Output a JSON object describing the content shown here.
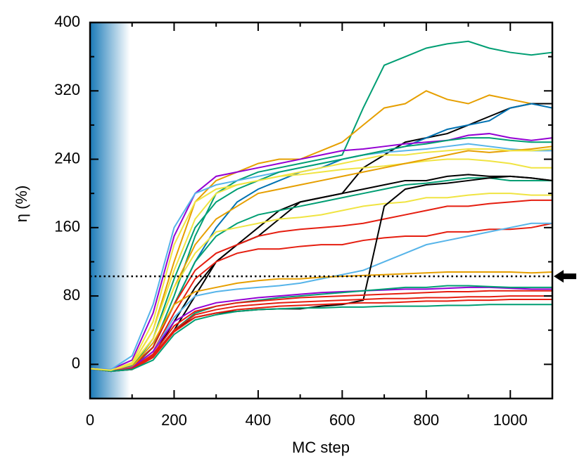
{
  "chart_data": {
    "type": "line",
    "xlabel": "MC step",
    "ylabel": "η  (%)",
    "xlim": [
      0,
      1100
    ],
    "ylim": [
      -40,
      400
    ],
    "xticks": [
      0,
      200,
      400,
      600,
      800,
      1000
    ],
    "xticks_minor": [
      100,
      300,
      500,
      700,
      900
    ],
    "yticks": [
      0,
      80,
      160,
      240,
      320,
      400
    ],
    "yticks_minor": [
      -40,
      40,
      120,
      200,
      280,
      360
    ],
    "reference_line": 103,
    "shaded_region": [
      0,
      95
    ],
    "shade_color": "#1a7ab8",
    "x": [
      0,
      50,
      100,
      150,
      200,
      250,
      300,
      350,
      400,
      450,
      500,
      550,
      600,
      650,
      700,
      750,
      800,
      850,
      900,
      950,
      1000,
      1050,
      1100
    ],
    "series": [
      {
        "color": "#009e73",
        "values": [
          -5,
          -8,
          -5,
          20,
          80,
          150,
          200,
          215,
          225,
          230,
          235,
          240,
          245,
          300,
          350,
          360,
          370,
          375,
          378,
          370,
          365,
          362,
          365
        ]
      },
      {
        "color": "#e69f00",
        "values": [
          -5,
          -7,
          0,
          40,
          120,
          190,
          215,
          225,
          235,
          240,
          240,
          250,
          260,
          280,
          300,
          305,
          320,
          310,
          305,
          315,
          310,
          305,
          305
        ]
      },
      {
        "color": "#000000",
        "values": [
          -5,
          -8,
          -3,
          10,
          40,
          80,
          120,
          140,
          150,
          170,
          190,
          195,
          200,
          230,
          245,
          260,
          265,
          270,
          280,
          290,
          300,
          305,
          305
        ]
      },
      {
        "color": "#0072b2",
        "values": [
          -5,
          -8,
          -2,
          20,
          70,
          120,
          160,
          190,
          205,
          215,
          225,
          230,
          240,
          245,
          250,
          255,
          265,
          275,
          280,
          285,
          300,
          305,
          300
        ]
      },
      {
        "color": "#9400d3",
        "values": [
          -5,
          -6,
          5,
          60,
          150,
          200,
          220,
          225,
          230,
          235,
          240,
          245,
          250,
          252,
          255,
          258,
          260,
          262,
          268,
          270,
          265,
          262,
          265
        ]
      },
      {
        "color": "#56b4e9",
        "values": [
          -5,
          -6,
          10,
          70,
          160,
          200,
          210,
          215,
          220,
          225,
          230,
          235,
          240,
          245,
          248,
          250,
          252,
          255,
          258,
          255,
          252,
          250,
          250
        ]
      },
      {
        "color": "#f0e442",
        "values": [
          -5,
          -7,
          0,
          40,
          110,
          170,
          200,
          210,
          215,
          220,
          222,
          225,
          228,
          230,
          232,
          235,
          238,
          240,
          240,
          238,
          235,
          230,
          230
        ]
      },
      {
        "color": "#009e73",
        "values": [
          -5,
          -8,
          -3,
          30,
          100,
          160,
          190,
          205,
          215,
          225,
          230,
          235,
          240,
          245,
          250,
          255,
          258,
          262,
          265,
          265,
          262,
          260,
          260
        ]
      },
      {
        "color": "#e69f00",
        "values": [
          -5,
          -7,
          0,
          30,
          90,
          140,
          170,
          185,
          200,
          205,
          210,
          215,
          220,
          225,
          230,
          235,
          240,
          245,
          250,
          248,
          250,
          252,
          255
        ]
      },
      {
        "color": "#000000",
        "values": [
          -5,
          -8,
          -5,
          10,
          50,
          90,
          120,
          140,
          160,
          180,
          190,
          195,
          200,
          205,
          210,
          215,
          215,
          220,
          222,
          220,
          220,
          218,
          215
        ]
      },
      {
        "color": "#009e73",
        "values": [
          -5,
          -8,
          -3,
          20,
          70,
          120,
          150,
          165,
          175,
          180,
          185,
          190,
          195,
          200,
          205,
          210,
          212,
          215,
          218,
          218,
          215,
          215,
          215
        ]
      },
      {
        "color": "#f0e442",
        "values": [
          -5,
          -7,
          0,
          30,
          90,
          130,
          155,
          160,
          165,
          170,
          172,
          175,
          180,
          185,
          188,
          190,
          195,
          195,
          198,
          200,
          200,
          198,
          198
        ]
      },
      {
        "color": "#e51e10",
        "values": [
          -5,
          -8,
          -3,
          20,
          70,
          110,
          130,
          140,
          150,
          155,
          158,
          160,
          162,
          165,
          170,
          175,
          180,
          185,
          185,
          188,
          190,
          192,
          192
        ]
      },
      {
        "color": "#e51e10",
        "values": [
          -5,
          -8,
          -4,
          15,
          60,
          100,
          120,
          130,
          135,
          135,
          138,
          140,
          140,
          145,
          148,
          150,
          150,
          155,
          155,
          158,
          158,
          160,
          165
        ]
      },
      {
        "color": "#56b4e9",
        "values": [
          -5,
          -8,
          -4,
          15,
          55,
          80,
          85,
          88,
          90,
          92,
          95,
          100,
          105,
          110,
          120,
          130,
          140,
          145,
          150,
          155,
          160,
          165,
          165
        ]
      },
      {
        "color": "#000000",
        "values": [
          -5,
          -8,
          -6,
          10,
          40,
          55,
          60,
          62,
          64,
          65,
          65,
          68,
          70,
          75,
          185,
          205,
          210,
          212,
          215,
          218,
          220,
          218,
          215
        ]
      },
      {
        "color": "#e69f00",
        "values": [
          -5,
          -8,
          -3,
          25,
          70,
          85,
          90,
          95,
          98,
          100,
          100,
          102,
          103,
          104,
          105,
          106,
          107,
          108,
          108,
          108,
          108,
          107,
          108
        ]
      },
      {
        "color": "#9400d3",
        "values": [
          -5,
          -8,
          -4,
          15,
          50,
          65,
          72,
          75,
          78,
          80,
          82,
          84,
          85,
          86,
          87,
          88,
          88,
          89,
          90,
          90,
          89,
          88,
          88
        ]
      },
      {
        "color": "#009e73",
        "values": [
          -5,
          -8,
          -5,
          10,
          40,
          60,
          68,
          72,
          75,
          78,
          80,
          82,
          84,
          86,
          88,
          90,
          90,
          92,
          92,
          91,
          90,
          90,
          90
        ]
      },
      {
        "color": "#e51e10",
        "values": [
          -5,
          -8,
          -5,
          12,
          45,
          62,
          68,
          72,
          74,
          76,
          78,
          79,
          80,
          81,
          82,
          83,
          84,
          85,
          85,
          86,
          86,
          86,
          86
        ]
      },
      {
        "color": "#e51e10",
        "values": [
          -5,
          -8,
          -5,
          10,
          40,
          58,
          64,
          68,
          70,
          72,
          73,
          74,
          75,
          76,
          77,
          77,
          78,
          78,
          79,
          79,
          80,
          80,
          80
        ]
      },
      {
        "color": "#e51e10",
        "values": [
          -5,
          -8,
          -6,
          8,
          38,
          55,
          60,
          64,
          66,
          68,
          69,
          70,
          71,
          72,
          72,
          73,
          74,
          74,
          75,
          75,
          76,
          76,
          76
        ]
      },
      {
        "color": "#009e73",
        "values": [
          -5,
          -8,
          -6,
          5,
          35,
          52,
          58,
          62,
          64,
          65,
          66,
          66,
          67,
          67,
          68,
          68,
          68,
          69,
          69,
          70,
          70,
          70,
          70
        ]
      },
      {
        "color": "#f0e442",
        "values": [
          -5,
          -7,
          2,
          50,
          140,
          190,
          205,
          210,
          215,
          220,
          225,
          230,
          235,
          240,
          245,
          245,
          248,
          250,
          252,
          252,
          250,
          250,
          252
        ]
      }
    ]
  }
}
